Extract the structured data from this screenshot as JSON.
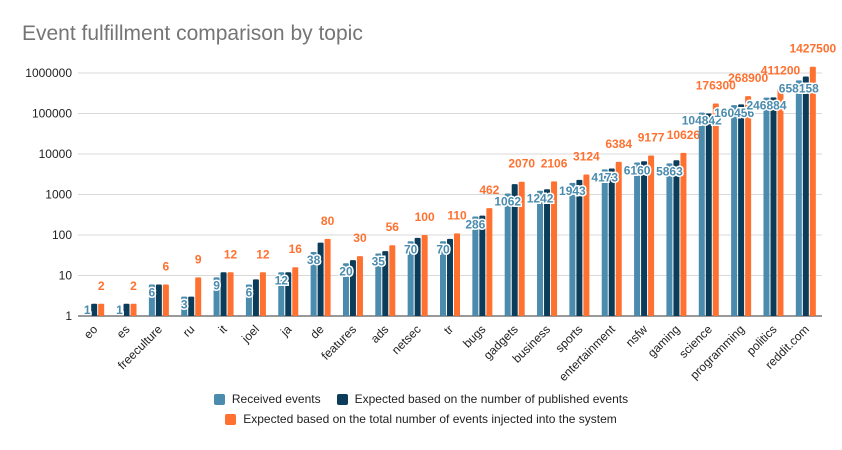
{
  "chart_data": {
    "type": "bar",
    "title": "Event fulfillment comparison by topic",
    "xlabel": "",
    "ylabel": "",
    "yscale": "log",
    "ylim": [
      1,
      1000000
    ],
    "yticks": [
      "1",
      "10",
      "100",
      "1000",
      "10000",
      "100000",
      "1000000"
    ],
    "grid": true,
    "legend_position": "bottom",
    "categories": [
      "eo",
      "es",
      "freeculture",
      "ru",
      "it",
      "joel",
      "ja",
      "de",
      "features",
      "ads",
      "netsec",
      "tr",
      "bugs",
      "gadgets",
      "business",
      "sports",
      "entertainment",
      "nsfw",
      "gaming",
      "science",
      "programming",
      "politics",
      "reddit.com"
    ],
    "series": [
      {
        "name": "Received events",
        "color": "#4a8bae",
        "values": [
          1,
          1,
          6,
          3,
          9,
          6,
          12,
          38,
          20,
          35,
          70,
          70,
          286,
          1062,
          1242,
          1943,
          4173,
          6160,
          5863,
          104842,
          160456,
          246884,
          658158
        ],
        "labels": [
          "1",
          "1",
          "6",
          "3",
          "9",
          "6",
          "12",
          "38",
          "20",
          "35",
          "70",
          "70",
          "286",
          "1062",
          "1242",
          "1943",
          "4173",
          "6160",
          "5863",
          "104842",
          "160456",
          "246884",
          "658158"
        ]
      },
      {
        "name": "Expected based on the number of published events",
        "color": "#0b3d5a",
        "values": [
          2,
          2,
          6,
          3,
          12,
          8,
          12,
          65,
          24,
          40,
          85,
          80,
          300,
          1800,
          1350,
          2300,
          4400,
          6600,
          7000,
          100000,
          168000,
          250000,
          820000
        ]
      },
      {
        "name": "Expected based on the total number of events injected into the system",
        "color": "#ff7130",
        "values": [
          2,
          2,
          6,
          9,
          12,
          12,
          16,
          80,
          30,
          56,
          100,
          110,
          462,
          2070,
          2106,
          3124,
          6384,
          9177,
          10626,
          176300,
          268900,
          411200,
          1427500
        ],
        "labels": [
          "2",
          "2",
          "6",
          "9",
          "12",
          "12",
          "16",
          "80",
          "30",
          "56",
          "100",
          "110",
          "462",
          "2070",
          "2106",
          "3124",
          "6384",
          "9177",
          "10626",
          "176300",
          "268900",
          "411200",
          "1427500"
        ]
      }
    ]
  }
}
